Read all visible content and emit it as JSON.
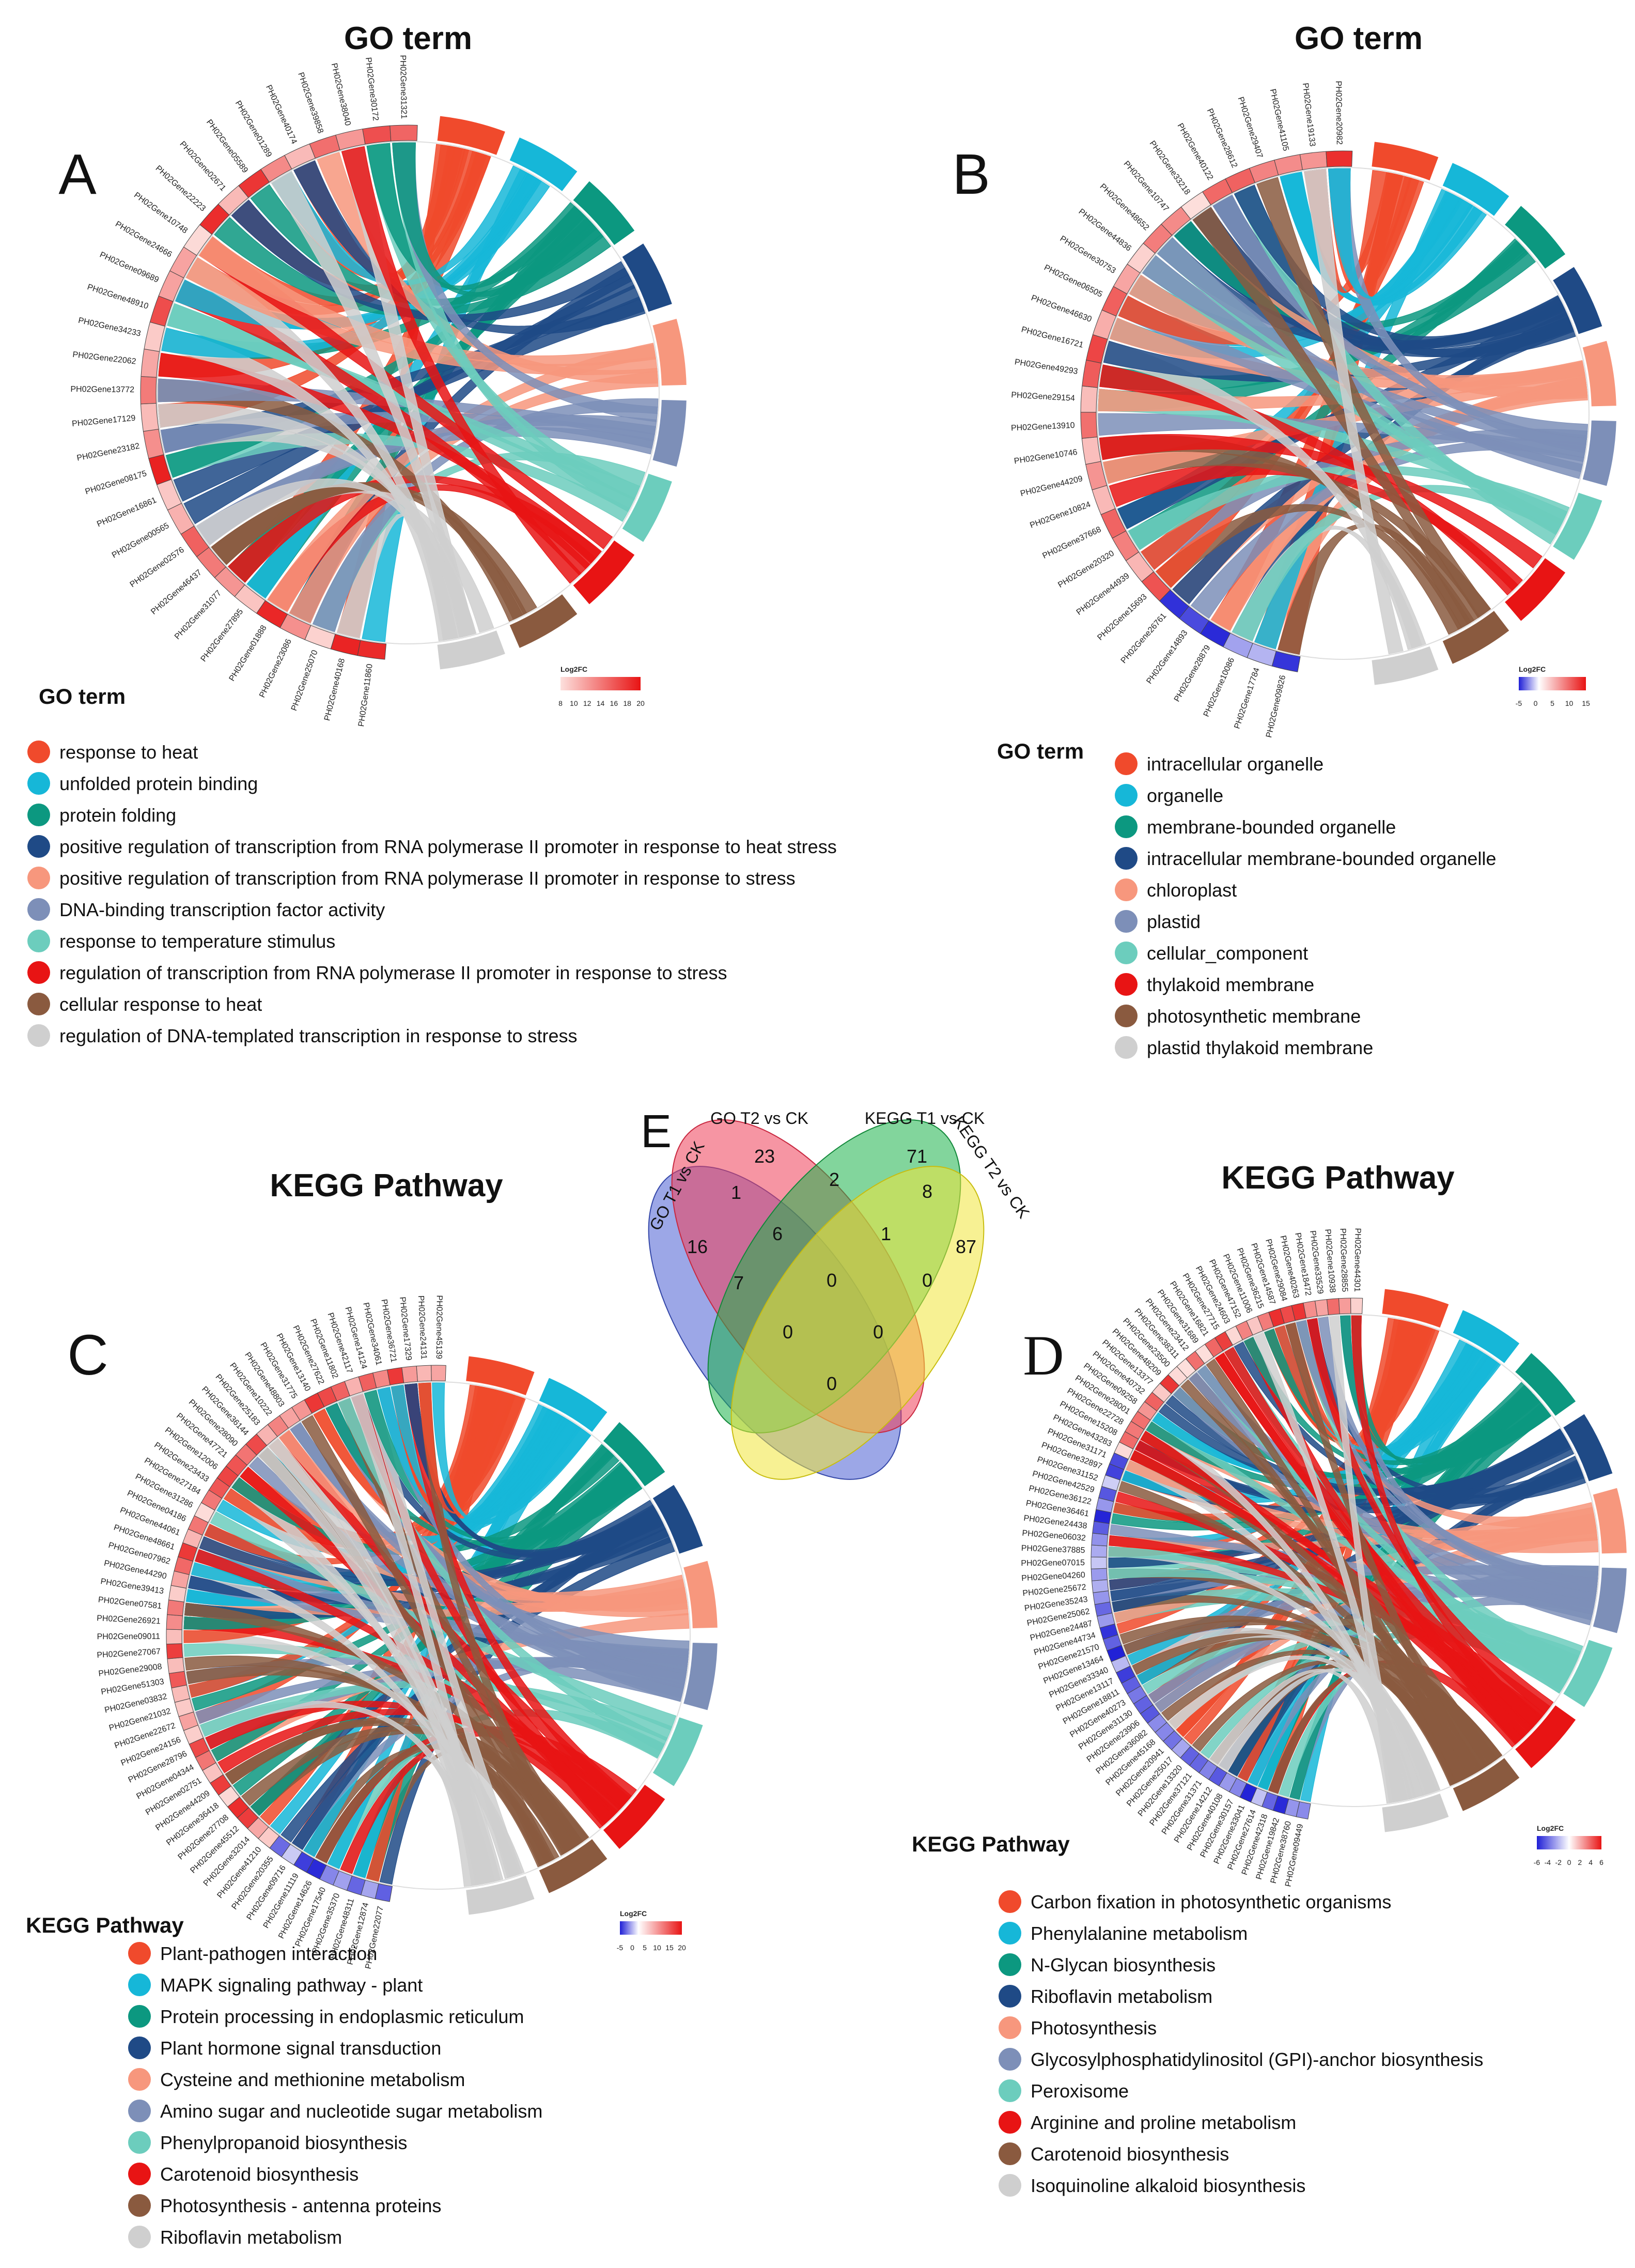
{
  "figure": {
    "panel_titles": {
      "A": "GO term",
      "B": "GO term",
      "C": "KEGG Pathway",
      "D": "KEGG Pathway"
    },
    "panel_letters": {
      "A": "A",
      "B": "B",
      "C": "C",
      "D": "D",
      "E": "E"
    },
    "log2fc_label": "Log2FC",
    "colors": {
      "c1": "#f04a2c",
      "c2": "#16b7d8",
      "c3": "#0c9880",
      "c4": "#1f4a86",
      "c5": "#f7977d",
      "c6": "#7d8fb8",
      "c7": "#6ccdbd",
      "c8": "#e81414",
      "c9": "#8a5a3f",
      "c10": "#cfcfcf"
    }
  },
  "chart_data": [
    {
      "panel": "A",
      "type": "chord",
      "title": "GO term",
      "legend_title": "GO term",
      "terms": [
        "response to heat",
        "unfolded protein binding",
        "protein folding",
        "positive regulation of transcription from RNA polymerase II promoter in response to heat stress",
        "positive regulation of transcription from RNA polymerase II promoter in response to stress",
        "DNA-binding transcription factor activity",
        "response to temperature stimulus",
        "regulation of transcription from RNA polymerase II promoter in response to stress",
        "cellular response to heat",
        "regulation of DNA-templated transcription in response to stress"
      ],
      "genes": [
        "PH02Gene11860",
        "PH02Gene40168",
        "PH02Gene25070",
        "PH02Gene23086",
        "PH02Gene01888",
        "PH02Gene27895",
        "PH02Gene31077",
        "PH02Gene46437",
        "PH02Gene02576",
        "PH02Gene00565",
        "PH02Gene16861",
        "PH02Gene08175",
        "PH02Gene23182",
        "PH02Gene17129",
        "PH02Gene13772",
        "PH02Gene22062",
        "PH02Gene34233",
        "PH02Gene48910",
        "PH02Gene09689",
        "PH02Gene24666",
        "PH02Gene10748",
        "PH02Gene22223",
        "PH02Gene02671",
        "PH02Gene05589",
        "PH02Gene01289",
        "PH02Gene40174",
        "PH02Gene39858",
        "PH02Gene38040",
        "PH02Gene30172",
        "PH02Gene31321"
      ],
      "log2fc_range": [
        8,
        20
      ],
      "log2fc_ticks": [
        "8",
        "10",
        "12",
        "14",
        "16",
        "18",
        "20"
      ]
    },
    {
      "panel": "B",
      "type": "chord",
      "title": "GO term",
      "legend_title": "GO term",
      "terms": [
        "intracellular organelle",
        "organelle",
        "membrane-bounded organelle",
        "intracellular membrane-bounded organelle",
        "chloroplast",
        "plastid",
        "cellular_component",
        "thylakoid membrane",
        "photosynthetic membrane",
        "plastid thylakoid membrane"
      ],
      "genes": [
        "PH02Gene09826",
        "PH02Gene17784",
        "PH02Gene10086",
        "PH02Gene28879",
        "PH02Gene14893",
        "PH02Gene26761",
        "PH02Gene15693",
        "PH02Gene44939",
        "PH02Gene20320",
        "PH02Gene37668",
        "PH02Gene10824",
        "PH02Gene44209",
        "PH02Gene10746",
        "PH02Gene13910",
        "PH02Gene29154",
        "PH02Gene49293",
        "PH02Gene16721",
        "PH02Gene46630",
        "PH02Gene06505",
        "PH02Gene30753",
        "PH02Gene44836",
        "PH02Gene48652",
        "PH02Gene10747",
        "PH02Gene33218",
        "PH02Gene40122",
        "PH02Gene28612",
        "PH02Gene29407",
        "PH02Gene41105",
        "PH02Gene19133",
        "PH02Gene20982"
      ],
      "log2fc_range": [
        -5,
        15
      ],
      "log2fc_ticks": [
        "-5",
        "0",
        "5",
        "10",
        "15"
      ]
    },
    {
      "panel": "C",
      "type": "chord",
      "title": "KEGG Pathway",
      "legend_title": "KEGG Pathway",
      "terms": [
        "Plant-pathogen interaction",
        "MAPK signaling pathway - plant",
        "Protein processing in endoplasmic reticulum",
        "Plant hormone signal transduction",
        "Cysteine and methionine metabolism",
        "Amino sugar and nucleotide sugar metabolism",
        "Phenylpropanoid biosynthesis",
        "Carotenoid biosynthesis",
        "Photosynthesis - antenna proteins",
        "Riboflavin metabolism"
      ],
      "genes": [
        "PH02Gene22077",
        "PH02Gene12874",
        "PH02Gene48311",
        "PH02Gene35370",
        "PH02Gene17540",
        "PH02Gene14626",
        "PH02Gene11119",
        "PH02Gene09716",
        "PH02Gene20355",
        "PH02Gene41210",
        "PH02Gene32014",
        "PH02Gene45512",
        "PH02Gene27708",
        "PH02Gene36418",
        "PH02Gene44209",
        "PH02Gene02751",
        "PH02Gene04344",
        "PH02Gene28796",
        "PH02Gene24156",
        "PH02Gene22672",
        "PH02Gene21032",
        "PH02Gene03832",
        "PH02Gene51303",
        "PH02Gene29008",
        "PH02Gene27067",
        "PH02Gene09011",
        "PH02Gene26921",
        "PH02Gene07581",
        "PH02Gene39413",
        "PH02Gene44290",
        "PH02Gene07962",
        "PH02Gene48661",
        "PH02Gene44061",
        "PH02Gene04186",
        "PH02Gene31286",
        "PH02Gene27184",
        "PH02Gene23433",
        "PH02Gene12006",
        "PH02Gene47721",
        "PH02Gene28090",
        "PH02Gene36144",
        "PH02Gene25183",
        "PH02Gene10222",
        "PH02Gene48803",
        "PH02Gene31775",
        "PH02Gene13140",
        "PH02Gene27622",
        "PH02Gene11802",
        "PH02Gene42117",
        "PH02Gene14124",
        "PH02Gene34061",
        "PH02Gene36721",
        "PH02Gene17329",
        "PH02Gene24131",
        "PH02Gene45139"
      ],
      "log2fc_range": [
        -5,
        20
      ],
      "log2fc_ticks": [
        "-5",
        "0",
        "5",
        "10",
        "15",
        "20"
      ]
    },
    {
      "panel": "D",
      "type": "chord",
      "title": "KEGG Pathway",
      "legend_title": "KEGG Pathway",
      "terms": [
        "Carbon fixation in photosynthetic organisms",
        "Phenylalanine metabolism",
        "N-Glycan biosynthesis",
        "Riboflavin metabolism",
        "Photosynthesis",
        "Glycosylphosphatidylinositol (GPI)-anchor biosynthesis",
        "Peroxisome",
        "Arginine and proline metabolism",
        "Carotenoid biosynthesis",
        "Isoquinoline alkaloid biosynthesis"
      ],
      "genes": [
        "PH02Gene09449",
        "PH02Gene38760",
        "PH02Gene19842",
        "PH02Gene42318",
        "PH02Gene27614",
        "PH02Gene33041",
        "PH02Gene30157",
        "PH02Gene40108",
        "PH02Gene14212",
        "PH02Gene31371",
        "PH02Gene37121",
        "PH02Gene13320",
        "PH02Gene25017",
        "PH02Gene20941",
        "PH02Gene45168",
        "PH02Gene36082",
        "PH02Gene23906",
        "PH02Gene31130",
        "PH02Gene40273",
        "PH02Gene18811",
        "PH02Gene13117",
        "PH02Gene33340",
        "PH02Gene13464",
        "PH02Gene21570",
        "PH02Gene44734",
        "PH02Gene24487",
        "PH02Gene25062",
        "PH02Gene35243",
        "PH02Gene25672",
        "PH02Gene04260",
        "PH02Gene07015",
        "PH02Gene37885",
        "PH02Gene06032",
        "PH02Gene24438",
        "PH02Gene36461",
        "PH02Gene36122",
        "PH02Gene42529",
        "PH02Gene31152",
        "PH02Gene32897",
        "PH02Gene31171",
        "PH02Gene43283",
        "PH02Gene15208",
        "PH02Gene22728",
        "PH02Gene28001",
        "PH02Gene09258",
        "PH02Gene40732",
        "PH02Gene13377",
        "PH02Gene48209",
        "PH02Gene23500",
        "PH02Gene38311",
        "PH02Gene23412",
        "PH02Gene31689",
        "PH02Gene16821",
        "PH02Gene27715",
        "PH02Gene24603",
        "PH02Gene47152",
        "PH02Gene11006",
        "PH02Gene36215",
        "PH02Gene14587",
        "PH02Gene29084",
        "PH02Gene40263",
        "PH02Gene18472",
        "PH02Gene33529",
        "PH02Gene10938",
        "PH02Gene28855",
        "PH02Gene44301"
      ],
      "log2fc_range": [
        -6,
        6
      ],
      "log2fc_ticks": [
        "-6",
        "-4",
        "-2",
        "0",
        "2",
        "4",
        "6"
      ]
    },
    {
      "panel": "E",
      "type": "venn",
      "sets": [
        "GO T1 vs  CK",
        "GO T2 vs  CK",
        "KEGG T1 vs  CK",
        "KEGG T2 vs  CK"
      ],
      "regions": {
        "go_t1_only": "16",
        "go_t2_only": "23",
        "kegg_t1_only": "71",
        "kegg_t2_only": "87",
        "go_t1_go_t2": "1",
        "go_t2_kegg_t1": "2",
        "kegg_t1_kegg_t2": "8",
        "go_t1_go_t2_kegg_t1": "6",
        "go_t2_kegg_t1_kegg_t2": "1",
        "go_t1_kegg_t1": "7",
        "all_four": "0",
        "go_t2_kegg_t2": "0",
        "go_t1_kegg_t1_kegg_t2": "0",
        "go_t1_go_t2_kegg_t2": "0",
        "go_t1_kegg_t2": "0"
      }
    }
  ]
}
